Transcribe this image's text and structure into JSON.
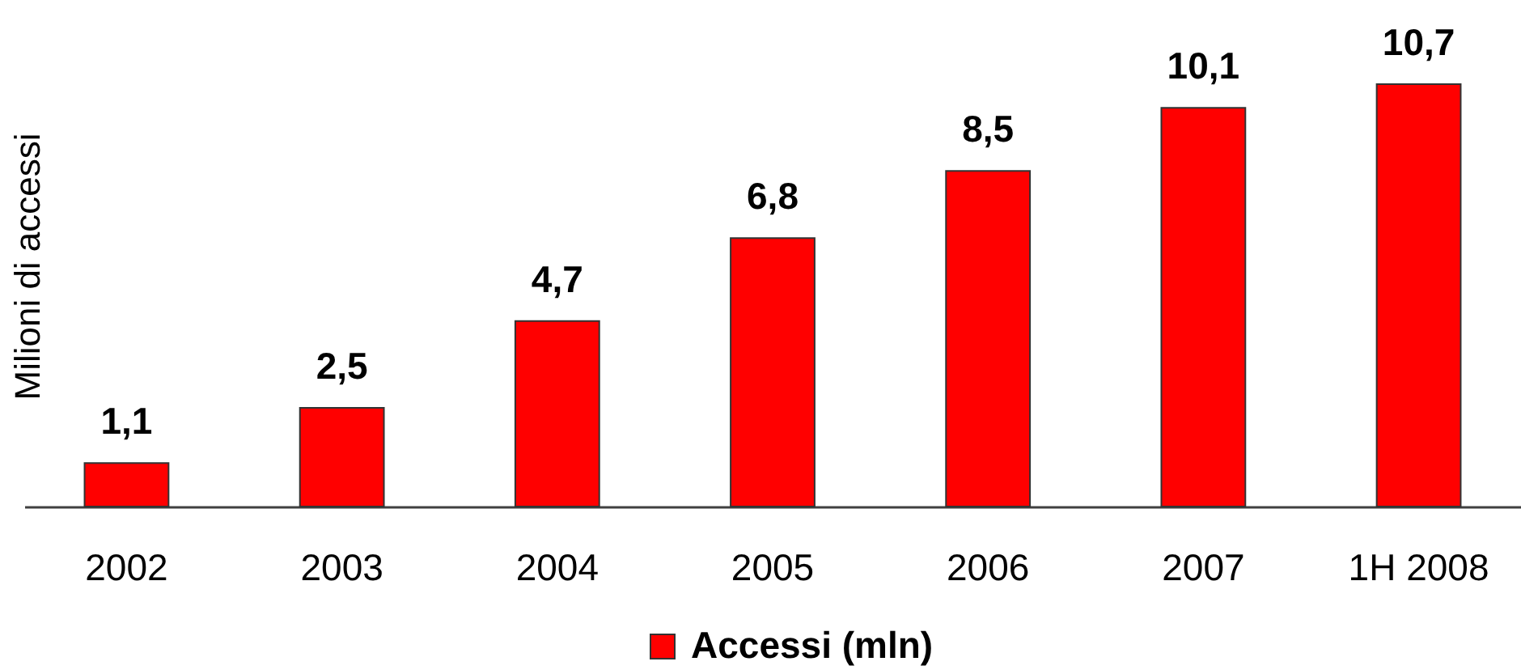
{
  "chart_data": {
    "type": "bar",
    "ylabel": "Milioni di accessi",
    "categories": [
      "2002",
      "2003",
      "2004",
      "2005",
      "2006",
      "2007",
      "1H 2008"
    ],
    "series": [
      {
        "name": "Accessi (mln)",
        "color": "#ff0000",
        "values": [
          1.1,
          2.5,
          4.7,
          6.8,
          8.5,
          10.1,
          10.7
        ],
        "value_labels": [
          "1,1",
          "2,5",
          "4,7",
          "6,8",
          "8,5",
          "10,1",
          "10,7"
        ]
      }
    ],
    "legend": "bottom",
    "tick_labels": "x"
  }
}
